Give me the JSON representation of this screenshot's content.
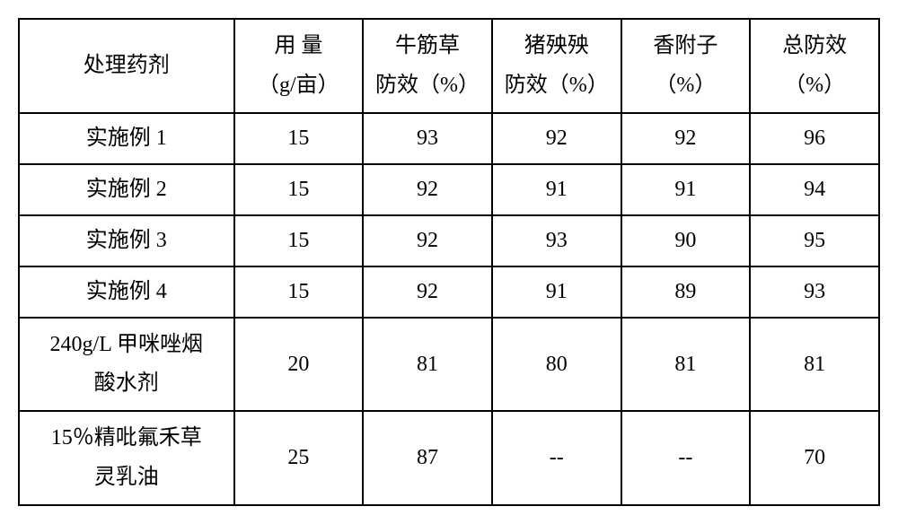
{
  "table": {
    "type": "table",
    "background_color": "#ffffff",
    "border_color": "#000000",
    "text_color": "#000000",
    "font_size_pt": 18,
    "font_family": "SimSun",
    "columns": [
      {
        "key": "treatment",
        "header_line1": "处理药剂",
        "header_line2": "",
        "width_pct": 25,
        "align": "center"
      },
      {
        "key": "dosage",
        "header_line1": "用 量",
        "header_line2": "（g/亩）",
        "width_pct": 15,
        "align": "center"
      },
      {
        "key": "eleusine",
        "header_line1": "牛筋草",
        "header_line2": "防效（%）",
        "width_pct": 15,
        "align": "center"
      },
      {
        "key": "portulaca",
        "header_line1": "猪殃殃",
        "header_line2": "防效（%）",
        "width_pct": 15,
        "align": "center"
      },
      {
        "key": "cyperus",
        "header_line1": "香附子",
        "header_line2": "（%）",
        "width_pct": 15,
        "align": "center"
      },
      {
        "key": "total",
        "header_line1": "总防效",
        "header_line2": "（%）",
        "width_pct": 15,
        "align": "center"
      }
    ],
    "rows": [
      {
        "treatment_line1": "实施例 1",
        "treatment_line2": "",
        "dosage": "15",
        "eleusine": "93",
        "portulaca": "92",
        "cyperus": "92",
        "total": "96",
        "tall": false
      },
      {
        "treatment_line1": "实施例 2",
        "treatment_line2": "",
        "dosage": "15",
        "eleusine": "92",
        "portulaca": "91",
        "cyperus": "91",
        "total": "94",
        "tall": false
      },
      {
        "treatment_line1": "实施例 3",
        "treatment_line2": "",
        "dosage": "15",
        "eleusine": "92",
        "portulaca": "93",
        "cyperus": "90",
        "total": "95",
        "tall": false
      },
      {
        "treatment_line1": "实施例 4",
        "treatment_line2": "",
        "dosage": "15",
        "eleusine": "92",
        "portulaca": "91",
        "cyperus": "89",
        "total": "93",
        "tall": false
      },
      {
        "treatment_line1": "240g/L 甲咪唑烟",
        "treatment_line2": "酸水剂",
        "dosage": "20",
        "eleusine": "81",
        "portulaca": "80",
        "cyperus": "81",
        "total": "81",
        "tall": true
      },
      {
        "treatment_line1": "15％精吡氟禾草",
        "treatment_line2": "灵乳油",
        "dosage": "25",
        "eleusine": "87",
        "portulaca": "--",
        "cyperus": "--",
        "total": "70",
        "tall": true
      }
    ]
  }
}
